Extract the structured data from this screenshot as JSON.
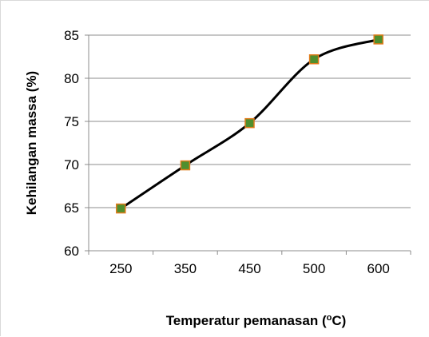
{
  "chart_data": {
    "type": "line",
    "title": "",
    "xlabel_parts": {
      "prefix": "Temperatur pemanasan (",
      "superscript": "o",
      "suffix": "C)"
    },
    "ylabel": "Kehilangan massa (%)",
    "categories": [
      "250",
      "350",
      "450",
      "500",
      "600"
    ],
    "values": [
      64.9,
      69.9,
      74.8,
      82.2,
      84.5
    ],
    "ylim": [
      60,
      85
    ],
    "yticks": [
      60,
      65,
      70,
      75,
      80,
      85
    ],
    "grid": true,
    "legend": "none",
    "smooth": true,
    "colors": {
      "line": "#000000",
      "marker_fill": "#4f8f2e",
      "marker_edge": "#e07b1a",
      "grid": "#8c8c8c",
      "axis": "#8c8c8c"
    }
  }
}
